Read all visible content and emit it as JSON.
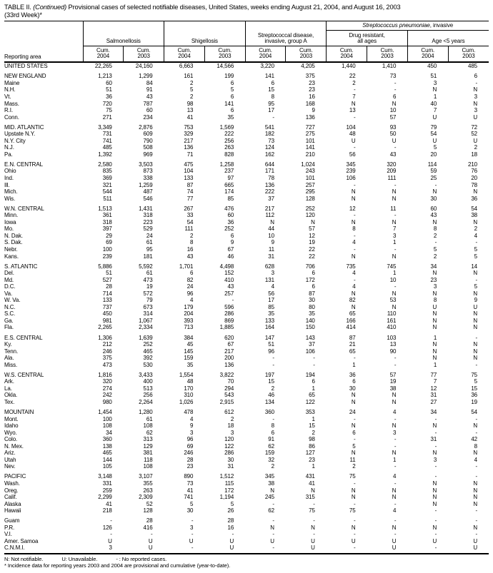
{
  "title": {
    "prefix": "TABLE II. ",
    "continued": "(Continued)",
    "rest": " Provisional cases of selected notifiable diseases, United States, weeks ending August 21, 2004, and August 16, 2003",
    "line2": "(33rd Week)*"
  },
  "header": {
    "reporting_area": "Reporting area",
    "groups": [
      "Salmonellosis",
      "Shigellosis",
      "Streptococcal disease,\ninvasive, group A",
      "Drug resistant,\nall ages",
      "Age <5 years"
    ],
    "pneumoniae_italic": "Streptococcus pneumoniae",
    "pneumoniae_rest": ", invasive",
    "cum_label": "Cum.",
    "years": [
      "2004",
      "2003",
      "2004",
      "2003",
      "2004",
      "2003",
      "2004",
      "2003",
      "2004",
      "2003"
    ]
  },
  "rows": [
    {
      "a": "UNITED STATES",
      "s": false,
      "v": [
        "22,265",
        "24,160",
        "6,663",
        "14,566",
        "3,220",
        "4,205",
        "1,440",
        "1,410",
        "450",
        "485"
      ]
    },
    {
      "a": "NEW ENGLAND",
      "s": true,
      "v": [
        "1,213",
        "1,299",
        "161",
        "199",
        "141",
        "375",
        "22",
        "73",
        "51",
        "6"
      ]
    },
    {
      "a": "Maine",
      "s": false,
      "v": [
        "60",
        "84",
        "2",
        "6",
        "6",
        "23",
        "2",
        "-",
        "3",
        "-"
      ]
    },
    {
      "a": "N.H.",
      "s": false,
      "v": [
        "51",
        "91",
        "5",
        "5",
        "15",
        "23",
        "-",
        "-",
        "N",
        "N"
      ]
    },
    {
      "a": "Vt.",
      "s": false,
      "v": [
        "36",
        "43",
        "2",
        "6",
        "8",
        "16",
        "7",
        "6",
        "1",
        "3"
      ]
    },
    {
      "a": "Mass.",
      "s": false,
      "v": [
        "720",
        "787",
        "98",
        "141",
        "95",
        "168",
        "N",
        "N",
        "40",
        "N"
      ]
    },
    {
      "a": "R.I.",
      "s": false,
      "v": [
        "75",
        "60",
        "13",
        "6",
        "17",
        "9",
        "13",
        "10",
        "7",
        "3"
      ]
    },
    {
      "a": "Conn.",
      "s": false,
      "v": [
        "271",
        "234",
        "41",
        "35",
        "-",
        "136",
        "-",
        "57",
        "U",
        "U"
      ]
    },
    {
      "a": "MID. ATLANTIC",
      "s": true,
      "v": [
        "3,349",
        "2,876",
        "753",
        "1,569",
        "541",
        "727",
        "104",
        "93",
        "79",
        "72"
      ]
    },
    {
      "a": "Upstate N.Y.",
      "s": false,
      "v": [
        "731",
        "609",
        "329",
        "222",
        "182",
        "275",
        "48",
        "50",
        "54",
        "52"
      ]
    },
    {
      "a": "N.Y. City",
      "s": false,
      "v": [
        "741",
        "790",
        "217",
        "256",
        "73",
        "101",
        "U",
        "U",
        "U",
        "U"
      ]
    },
    {
      "a": "N.J.",
      "s": false,
      "v": [
        "485",
        "508",
        "136",
        "263",
        "124",
        "141",
        "-",
        "-",
        "5",
        "2"
      ]
    },
    {
      "a": "Pa.",
      "s": false,
      "v": [
        "1,392",
        "969",
        "71",
        "828",
        "162",
        "210",
        "56",
        "43",
        "20",
        "18"
      ]
    },
    {
      "a": "E.N. CENTRAL",
      "s": true,
      "v": [
        "2,580",
        "3,503",
        "475",
        "1,258",
        "644",
        "1,024",
        "345",
        "320",
        "114",
        "210"
      ]
    },
    {
      "a": "Ohio",
      "s": false,
      "v": [
        "835",
        "873",
        "104",
        "237",
        "171",
        "243",
        "239",
        "209",
        "59",
        "76"
      ]
    },
    {
      "a": "Ind.",
      "s": false,
      "v": [
        "369",
        "338",
        "133",
        "97",
        "78",
        "101",
        "106",
        "111",
        "25",
        "20"
      ]
    },
    {
      "a": "Ill.",
      "s": false,
      "v": [
        "321",
        "1,259",
        "87",
        "665",
        "136",
        "257",
        "-",
        "-",
        "-",
        "78"
      ]
    },
    {
      "a": "Mich.",
      "s": false,
      "v": [
        "544",
        "487",
        "74",
        "174",
        "222",
        "295",
        "N",
        "N",
        "N",
        "N"
      ]
    },
    {
      "a": "Wis.",
      "s": false,
      "v": [
        "511",
        "546",
        "77",
        "85",
        "37",
        "128",
        "N",
        "N",
        "30",
        "36"
      ]
    },
    {
      "a": "W.N. CENTRAL",
      "s": true,
      "v": [
        "1,513",
        "1,431",
        "267",
        "476",
        "217",
        "252",
        "12",
        "11",
        "60",
        "54"
      ]
    },
    {
      "a": "Minn.",
      "s": false,
      "v": [
        "361",
        "318",
        "33",
        "60",
        "112",
        "120",
        "-",
        "-",
        "43",
        "38"
      ]
    },
    {
      "a": "Iowa",
      "s": false,
      "v": [
        "318",
        "223",
        "54",
        "36",
        "N",
        "N",
        "N",
        "N",
        "N",
        "N"
      ]
    },
    {
      "a": "Mo.",
      "s": false,
      "v": [
        "397",
        "529",
        "111",
        "252",
        "44",
        "57",
        "8",
        "7",
        "8",
        "2"
      ]
    },
    {
      "a": "N. Dak.",
      "s": false,
      "v": [
        "29",
        "24",
        "2",
        "6",
        "10",
        "12",
        "-",
        "3",
        "2",
        "4"
      ]
    },
    {
      "a": "S. Dak.",
      "s": false,
      "v": [
        "69",
        "61",
        "8",
        "9",
        "9",
        "19",
        "4",
        "1",
        "-",
        "-"
      ]
    },
    {
      "a": "Nebr.",
      "s": false,
      "v": [
        "100",
        "95",
        "16",
        "67",
        "11",
        "22",
        "-",
        "-",
        "5",
        "5"
      ]
    },
    {
      "a": "Kans.",
      "s": false,
      "v": [
        "239",
        "181",
        "43",
        "46",
        "31",
        "22",
        "N",
        "N",
        "2",
        "5"
      ]
    },
    {
      "a": "S. ATLANTIC",
      "s": true,
      "v": [
        "5,886",
        "5,592",
        "1,701",
        "4,498",
        "628",
        "706",
        "735",
        "745",
        "34",
        "14"
      ]
    },
    {
      "a": "Del.",
      "s": false,
      "v": [
        "51",
        "61",
        "6",
        "152",
        "3",
        "6",
        "4",
        "1",
        "N",
        "N"
      ]
    },
    {
      "a": "Md.",
      "s": false,
      "v": [
        "527",
        "473",
        "82",
        "410",
        "131",
        "172",
        "-",
        "10",
        "23",
        "-"
      ]
    },
    {
      "a": "D.C.",
      "s": false,
      "v": [
        "28",
        "19",
        "24",
        "43",
        "4",
        "6",
        "4",
        "-",
        "3",
        "5"
      ]
    },
    {
      "a": "Va.",
      "s": false,
      "v": [
        "714",
        "572",
        "96",
        "257",
        "56",
        "87",
        "N",
        "N",
        "N",
        "N"
      ]
    },
    {
      "a": "W. Va.",
      "s": false,
      "v": [
        "133",
        "79",
        "4",
        "-",
        "17",
        "30",
        "82",
        "53",
        "8",
        "9"
      ]
    },
    {
      "a": "N.C.",
      "s": false,
      "v": [
        "737",
        "673",
        "179",
        "596",
        "85",
        "80",
        "N",
        "N",
        "U",
        "U"
      ]
    },
    {
      "a": "S.C.",
      "s": false,
      "v": [
        "450",
        "314",
        "204",
        "286",
        "35",
        "35",
        "65",
        "110",
        "N",
        "N"
      ]
    },
    {
      "a": "Ga.",
      "s": false,
      "v": [
        "981",
        "1,067",
        "393",
        "869",
        "133",
        "140",
        "166",
        "161",
        "N",
        "N"
      ]
    },
    {
      "a": "Fla.",
      "s": false,
      "v": [
        "2,265",
        "2,334",
        "713",
        "1,885",
        "164",
        "150",
        "414",
        "410",
        "N",
        "N"
      ]
    },
    {
      "a": "E.S. CENTRAL",
      "s": true,
      "v": [
        "1,306",
        "1,639",
        "384",
        "620",
        "147",
        "143",
        "87",
        "103",
        "1",
        "-"
      ]
    },
    {
      "a": "Ky.",
      "s": false,
      "v": [
        "212",
        "252",
        "45",
        "67",
        "51",
        "37",
        "21",
        "13",
        "N",
        "N"
      ]
    },
    {
      "a": "Tenn.",
      "s": false,
      "v": [
        "246",
        "465",
        "145",
        "217",
        "96",
        "106",
        "65",
        "90",
        "N",
        "N"
      ]
    },
    {
      "a": "Ala.",
      "s": false,
      "v": [
        "375",
        "392",
        "159",
        "200",
        "-",
        "-",
        "-",
        "-",
        "N",
        "N"
      ]
    },
    {
      "a": "Miss.",
      "s": false,
      "v": [
        "473",
        "530",
        "35",
        "136",
        "-",
        "-",
        "1",
        "-",
        "1",
        "-"
      ]
    },
    {
      "a": "W.S. CENTRAL",
      "s": true,
      "v": [
        "1,816",
        "3,433",
        "1,554",
        "3,822",
        "197",
        "194",
        "36",
        "57",
        "77",
        "75"
      ]
    },
    {
      "a": "Ark.",
      "s": false,
      "v": [
        "320",
        "400",
        "48",
        "70",
        "15",
        "6",
        "6",
        "19",
        "7",
        "5"
      ]
    },
    {
      "a": "La.",
      "s": false,
      "v": [
        "274",
        "513",
        "170",
        "294",
        "2",
        "1",
        "30",
        "38",
        "12",
        "15"
      ]
    },
    {
      "a": "Okla.",
      "s": false,
      "v": [
        "242",
        "256",
        "310",
        "543",
        "46",
        "65",
        "N",
        "N",
        "31",
        "36"
      ]
    },
    {
      "a": "Tex.",
      "s": false,
      "v": [
        "980",
        "2,264",
        "1,026",
        "2,915",
        "134",
        "122",
        "N",
        "N",
        "27",
        "19"
      ]
    },
    {
      "a": "MOUNTAIN",
      "s": true,
      "v": [
        "1,454",
        "1,280",
        "478",
        "612",
        "360",
        "353",
        "24",
        "4",
        "34",
        "54"
      ]
    },
    {
      "a": "Mont.",
      "s": false,
      "v": [
        "100",
        "61",
        "4",
        "2",
        "-",
        "1",
        "-",
        "-",
        "-",
        "-"
      ]
    },
    {
      "a": "Idaho",
      "s": false,
      "v": [
        "108",
        "108",
        "9",
        "18",
        "8",
        "15",
        "N",
        "N",
        "N",
        "N"
      ]
    },
    {
      "a": "Wyo.",
      "s": false,
      "v": [
        "34",
        "62",
        "3",
        "3",
        "6",
        "2",
        "6",
        "3",
        "-",
        "-"
      ]
    },
    {
      "a": "Colo.",
      "s": false,
      "v": [
        "360",
        "313",
        "96",
        "120",
        "91",
        "98",
        "-",
        "-",
        "31",
        "42"
      ]
    },
    {
      "a": "N. Mex.",
      "s": false,
      "v": [
        "138",
        "129",
        "69",
        "122",
        "62",
        "86",
        "5",
        "-",
        "-",
        "8"
      ]
    },
    {
      "a": "Ariz.",
      "s": false,
      "v": [
        "465",
        "381",
        "246",
        "286",
        "159",
        "127",
        "N",
        "N",
        "N",
        "N"
      ]
    },
    {
      "a": "Utah",
      "s": false,
      "v": [
        "144",
        "118",
        "28",
        "30",
        "32",
        "23",
        "11",
        "1",
        "3",
        "4"
      ]
    },
    {
      "a": "Nev.",
      "s": false,
      "v": [
        "105",
        "108",
        "23",
        "31",
        "2",
        "1",
        "2",
        "-",
        "-",
        "-"
      ]
    },
    {
      "a": "PACIFIC",
      "s": true,
      "v": [
        "3,148",
        "3,107",
        "890",
        "1,512",
        "345",
        "431",
        "75",
        "4",
        "-",
        "-"
      ]
    },
    {
      "a": "Wash.",
      "s": false,
      "v": [
        "331",
        "355",
        "73",
        "115",
        "38",
        "41",
        "-",
        "-",
        "N",
        "N"
      ]
    },
    {
      "a": "Oreg.",
      "s": false,
      "v": [
        "259",
        "263",
        "41",
        "172",
        "N",
        "N",
        "N",
        "N",
        "N",
        "N"
      ]
    },
    {
      "a": "Calif.",
      "s": false,
      "v": [
        "2,299",
        "2,309",
        "741",
        "1,194",
        "245",
        "315",
        "N",
        "N",
        "N",
        "N"
      ]
    },
    {
      "a": "Alaska",
      "s": false,
      "v": [
        "41",
        "52",
        "5",
        "5",
        "-",
        "-",
        "-",
        "-",
        "N",
        "N"
      ]
    },
    {
      "a": "Hawaii",
      "s": false,
      "v": [
        "218",
        "128",
        "30",
        "26",
        "62",
        "75",
        "75",
        "4",
        "-",
        "-"
      ]
    },
    {
      "a": "Guam",
      "s": true,
      "v": [
        "-",
        "28",
        "-",
        "28",
        "-",
        "-",
        "-",
        "-",
        "-",
        "-"
      ]
    },
    {
      "a": "P.R.",
      "s": false,
      "v": [
        "126",
        "416",
        "3",
        "16",
        "N",
        "N",
        "N",
        "N",
        "N",
        "N"
      ]
    },
    {
      "a": "V.I.",
      "s": false,
      "v": [
        "-",
        "-",
        "-",
        "-",
        "-",
        "-",
        "-",
        "-",
        "-",
        "-"
      ]
    },
    {
      "a": "Amer. Samoa",
      "s": false,
      "v": [
        "U",
        "U",
        "U",
        "U",
        "U",
        "U",
        "U",
        "U",
        "U",
        "U"
      ]
    },
    {
      "a": "C.N.M.I.",
      "s": false,
      "v": [
        "3",
        "U",
        "-",
        "U",
        "-",
        "U",
        "-",
        "U",
        "-",
        "U"
      ]
    }
  ],
  "footnotes": {
    "n": "N: Not notifiable.",
    "u": "U: Unavailable.",
    "dash": "- : No reported cases.",
    "asterisk": "* Incidence data for reporting years 2003 and 2004 are provisional and cumulative (year-to-date)."
  }
}
